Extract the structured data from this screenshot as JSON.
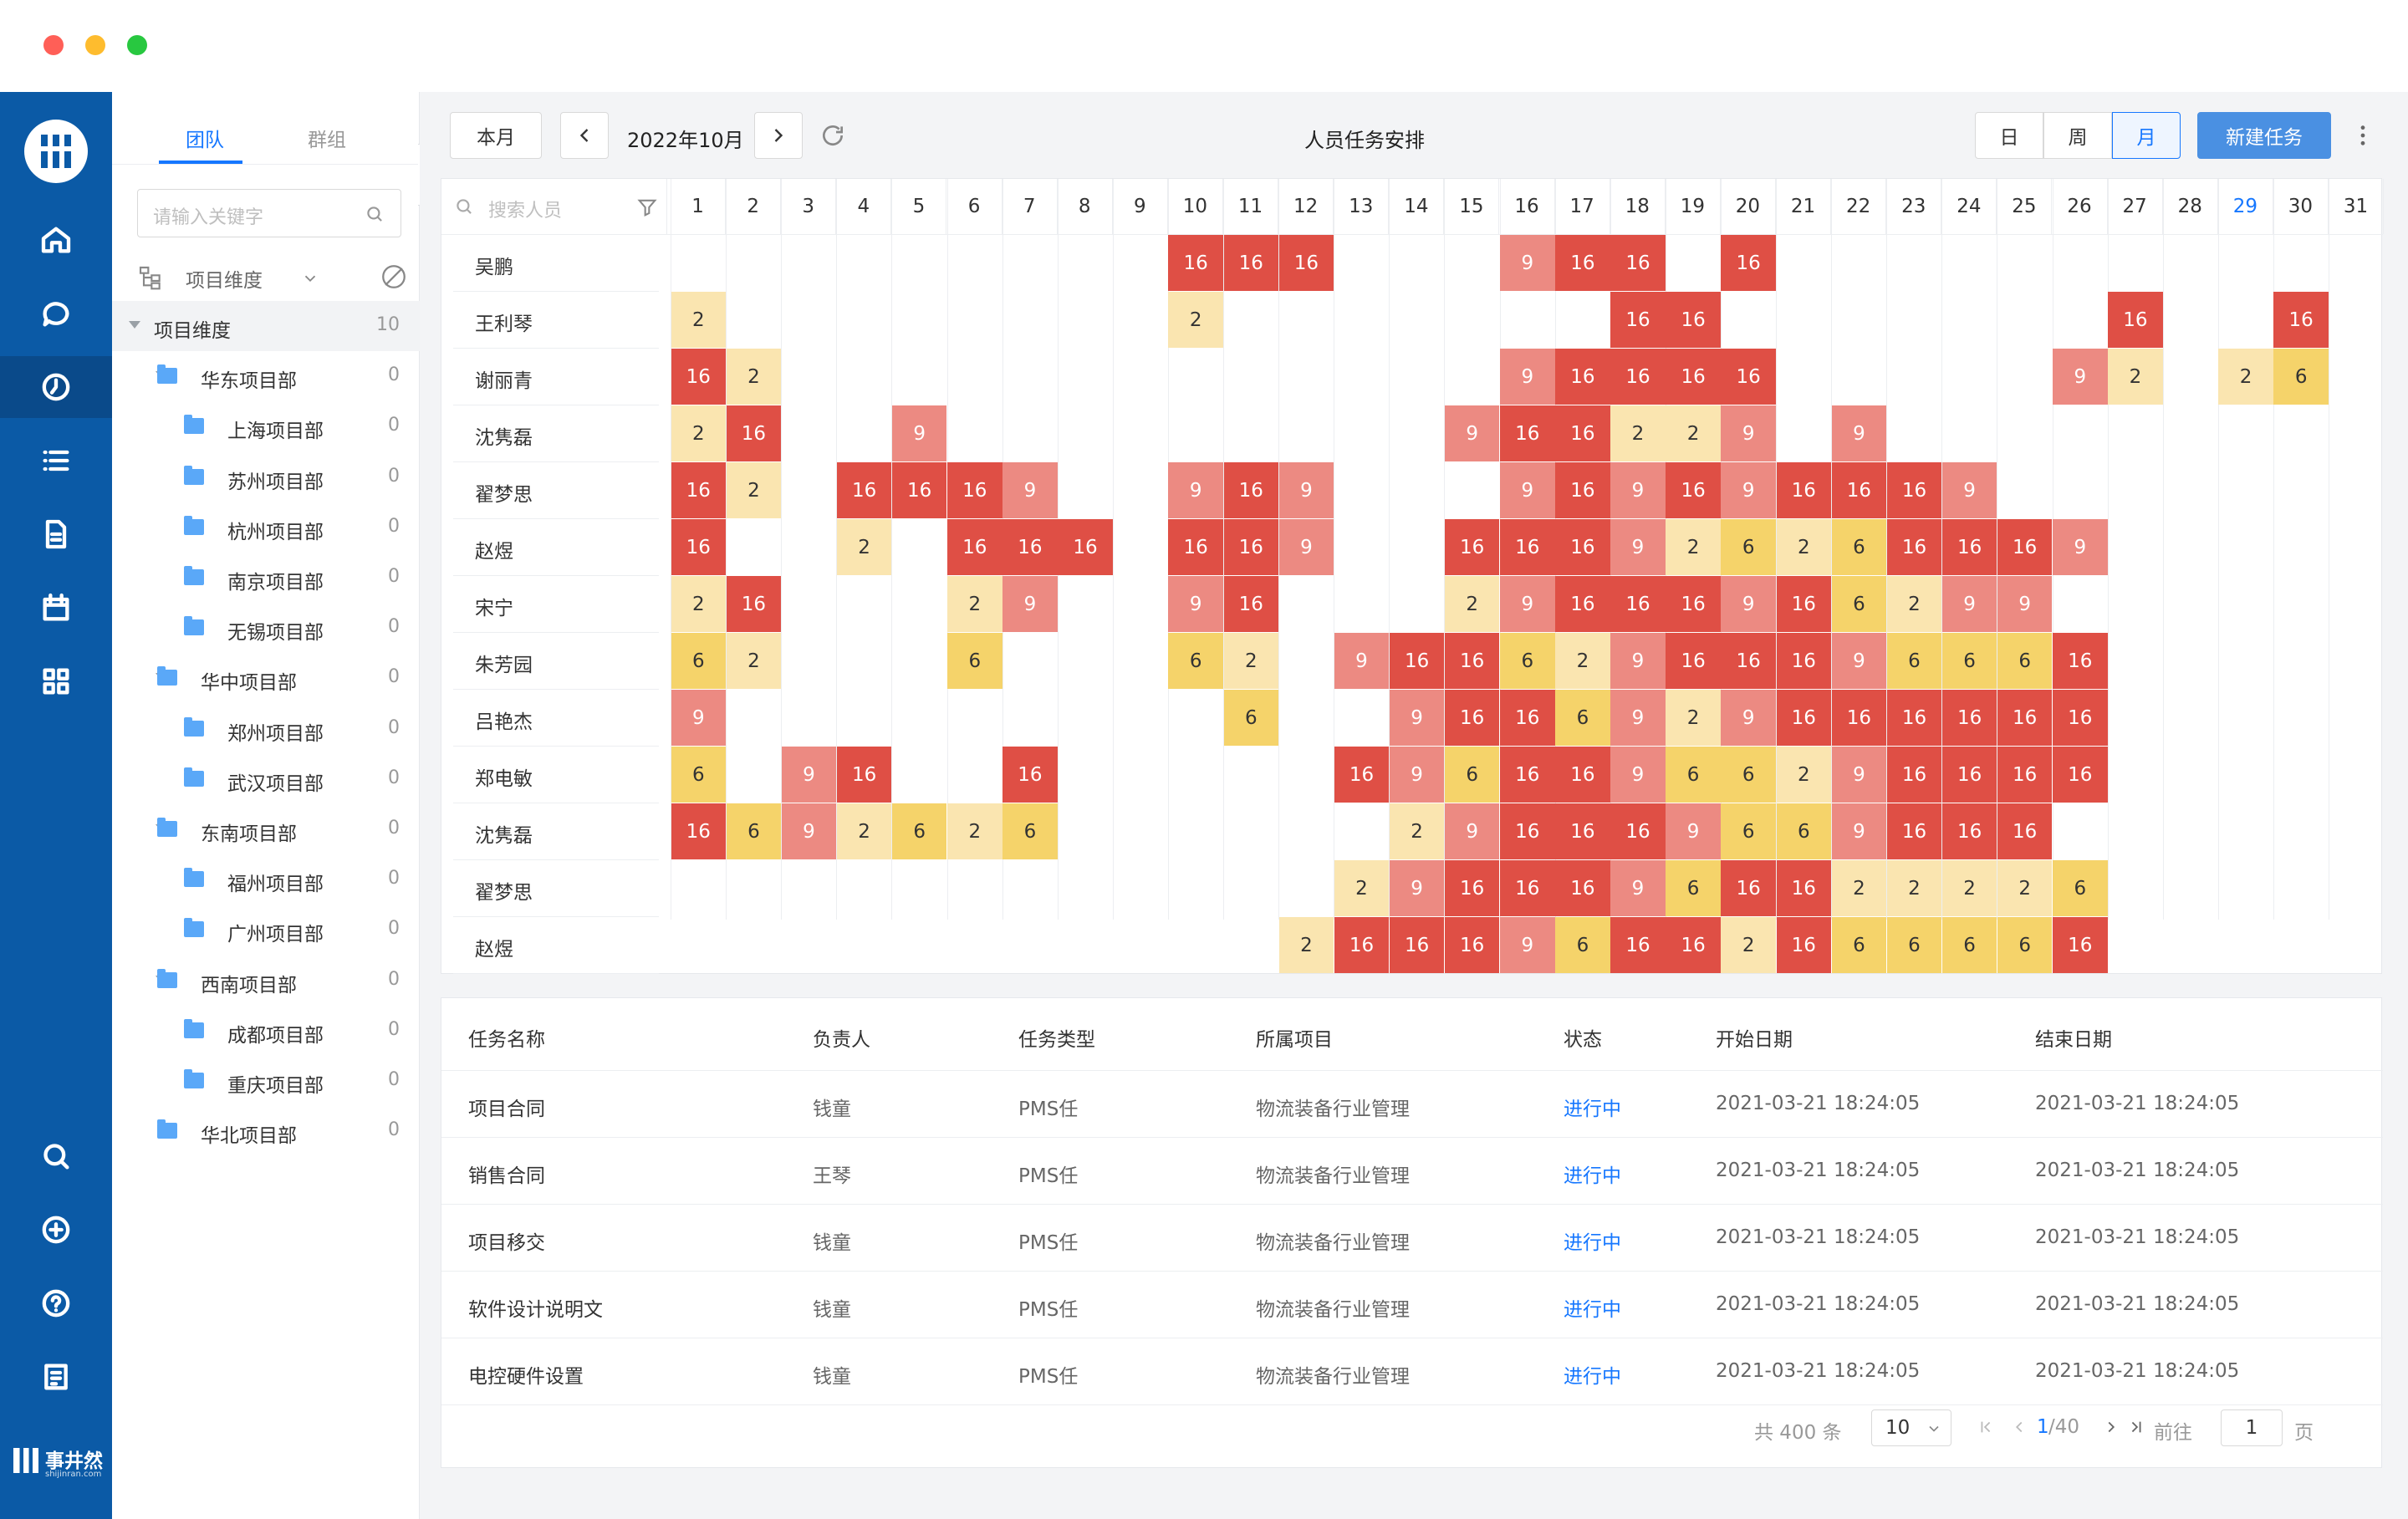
{
  "window": {
    "dots": [
      "#ff5f57",
      "#febc2e",
      "#28c840"
    ]
  },
  "tree": {
    "tabs": [
      "团队",
      "群组"
    ],
    "search_placeholder": "请输入关键字",
    "dimension_label": "项目维度",
    "nodes": [
      {
        "label": "项目维度",
        "count": "10",
        "level": 0,
        "expand": true,
        "selected": true
      },
      {
        "label": "华东项目部",
        "count": "0",
        "level": 1,
        "expand": true
      },
      {
        "label": "上海项目部",
        "count": "0",
        "level": 2
      },
      {
        "label": "苏州项目部",
        "count": "0",
        "level": 2
      },
      {
        "label": "杭州项目部",
        "count": "0",
        "level": 2
      },
      {
        "label": "南京项目部",
        "count": "0",
        "level": 2
      },
      {
        "label": "无锡项目部",
        "count": "0",
        "level": 2
      },
      {
        "label": "华中项目部",
        "count": "0",
        "level": 1,
        "expand": true
      },
      {
        "label": "郑州项目部",
        "count": "0",
        "level": 2
      },
      {
        "label": "武汉项目部",
        "count": "0",
        "level": 2
      },
      {
        "label": "东南项目部",
        "count": "0",
        "level": 1,
        "expand": true
      },
      {
        "label": "福州项目部",
        "count": "0",
        "level": 2
      },
      {
        "label": "广州项目部",
        "count": "0",
        "level": 2
      },
      {
        "label": "西南项目部",
        "count": "0",
        "level": 1,
        "expand": true
      },
      {
        "label": "成都项目部",
        "count": "0",
        "level": 2
      },
      {
        "label": "重庆项目部",
        "count": "0",
        "level": 2
      },
      {
        "label": "华北项目部",
        "count": "0",
        "level": 1,
        "expand": false
      }
    ]
  },
  "toolbar": {
    "this_month": "本月",
    "month": "2022年10月",
    "title": "人员任务安排",
    "views": [
      "日",
      "周",
      "月"
    ],
    "active_view": "月",
    "new_task": "新建任务"
  },
  "schedule": {
    "search_placeholder": "搜索人员",
    "days": [
      "1",
      "2",
      "3",
      "4",
      "5",
      "6",
      "7",
      "8",
      "9",
      "10",
      "11",
      "12",
      "13",
      "14",
      "15",
      "16",
      "17",
      "18",
      "19",
      "20",
      "21",
      "22",
      "23",
      "24",
      "25",
      "26",
      "27",
      "28",
      "29",
      "30",
      "31"
    ],
    "highlight_day": "29",
    "people": [
      "吴鹏",
      "王利琴",
      "谢丽青",
      "沈隽磊",
      "翟梦思",
      "赵煜",
      "宋宁",
      "朱芳园",
      "吕艳杰",
      "郑电敏",
      "沈隽磊",
      "翟梦思",
      "赵煜"
    ],
    "grid": [
      [
        "",
        "",
        "",
        "",
        "",
        "",
        "",
        "",
        "",
        "16",
        "16",
        "16",
        "",
        "",
        "",
        "9",
        "16",
        "16",
        "",
        "16",
        "",
        "",
        "",
        "",
        "",
        "",
        "",
        "",
        "",
        "",
        ""
      ],
      [
        "2",
        "",
        "",
        "",
        "",
        "",
        "",
        "",
        "",
        "2",
        "",
        "",
        "",
        "",
        "",
        "",
        "",
        "16",
        "16",
        "",
        "",
        "",
        "",
        "",
        "",
        "",
        "16",
        "",
        "",
        "16",
        ""
      ],
      [
        "16",
        "2",
        "",
        "",
        "",
        "",
        "",
        "",
        "",
        "",
        "",
        "",
        "",
        "",
        "",
        "9",
        "16",
        "16",
        "16",
        "16",
        "",
        "",
        "",
        "",
        "",
        "9",
        "2",
        "",
        "2",
        "6",
        ""
      ],
      [
        "2",
        "16",
        "",
        "",
        "9",
        "",
        "",
        "",
        "",
        "",
        "",
        "",
        "",
        "",
        "9",
        "16",
        "16",
        "2",
        "2",
        "9",
        "",
        "9",
        "",
        "",
        "",
        "",
        "",
        "",
        "",
        "",
        ""
      ],
      [
        "16",
        "2",
        "",
        "16",
        "16",
        "16",
        "9",
        "",
        "",
        "9",
        "16",
        "9",
        "",
        "",
        "",
        "9",
        "16",
        "9",
        "16",
        "9",
        "16",
        "16",
        "16",
        "9",
        "",
        "",
        "",
        "",
        "",
        "",
        ""
      ],
      [
        "16",
        "",
        "",
        "2",
        "",
        "16",
        "16",
        "16",
        "",
        "16",
        "16",
        "9",
        "",
        "",
        "16",
        "16",
        "16",
        "9",
        "2",
        "6",
        "2",
        "6",
        "16",
        "16",
        "16",
        "9",
        "",
        "",
        "",
        "",
        ""
      ],
      [
        "2",
        "16",
        "",
        "",
        "",
        "2",
        "9",
        "",
        "",
        "9",
        "16",
        "",
        "",
        "",
        "2",
        "9",
        "16",
        "16",
        "16",
        "9",
        "16",
        "6",
        "2",
        "9",
        "9",
        "",
        "",
        "",
        "",
        "",
        ""
      ],
      [
        "6",
        "2",
        "",
        "",
        "",
        "6",
        "",
        "",
        "",
        "6",
        "2",
        "",
        "9",
        "16",
        "16",
        "6",
        "2",
        "9",
        "16",
        "16",
        "16",
        "9",
        "6",
        "6",
        "6",
        "16",
        "",
        "",
        "",
        "",
        ""
      ],
      [
        "9",
        "",
        "",
        "",
        "",
        "",
        "",
        "",
        "",
        "",
        "6",
        "",
        "",
        "9",
        "16",
        "16",
        "6",
        "9",
        "2",
        "9",
        "16",
        "16",
        "16",
        "16",
        "16",
        "16",
        "",
        "",
        "",
        "",
        ""
      ],
      [
        "6",
        "",
        "9",
        "16",
        "",
        "",
        "16",
        "",
        "",
        "",
        "",
        "",
        "16",
        "9",
        "6",
        "16",
        "16",
        "9",
        "6",
        "6",
        "2",
        "9",
        "16",
        "16",
        "16",
        "16",
        "",
        "",
        "",
        "",
        ""
      ],
      [
        "16",
        "6",
        "9",
        "2",
        "6",
        "2",
        "6",
        "",
        "",
        "",
        "",
        "",
        "",
        "2",
        "9",
        "16",
        "16",
        "16",
        "9",
        "6",
        "6",
        "9",
        "16",
        "16",
        "16",
        "",
        "",
        "",
        "",
        "",
        ""
      ],
      [
        "",
        "",
        "",
        "",
        "",
        "",
        "",
        "",
        "",
        "",
        "",
        "",
        "2",
        "9",
        "16",
        "16",
        "16",
        "9",
        "6",
        "16",
        "16",
        "2",
        "2",
        "2",
        "2",
        "6",
        "",
        "",
        "",
        "",
        ""
      ],
      [
        "",
        "",
        "",
        "",
        "",
        "",
        "",
        "",
        "",
        "",
        "",
        "2",
        "16",
        "16",
        "16",
        "9",
        "6",
        "16",
        "16",
        "2",
        "16",
        "6",
        "6",
        "6",
        "6",
        "16",
        "",
        "",
        "",
        "",
        ""
      ]
    ],
    "colors": {
      "16": "#df4f45",
      "9": "#ec8a82",
      "6": "#f5d36a",
      "2": "#fae5b0"
    }
  },
  "tasks": {
    "headers": [
      "任务名称",
      "负责人",
      "任务类型",
      "所属项目",
      "状态",
      "开始日期",
      "结束日期"
    ],
    "rows": [
      [
        "项目合同",
        "钱童",
        "PMS任",
        "物流装备行业管理",
        "进行中",
        "2021-03-21 18:24:05",
        "2021-03-21 18:24:05"
      ],
      [
        "销售合同",
        "王琴",
        "PMS任",
        "物流装备行业管理",
        "进行中",
        "2021-03-21 18:24:05",
        "2021-03-21 18:24:05"
      ],
      [
        "项目移交",
        "钱童",
        "PMS任",
        "物流装备行业管理",
        "进行中",
        "2021-03-21 18:24:05",
        "2021-03-21 18:24:05"
      ],
      [
        "软件设计说明文",
        "钱童",
        "PMS任",
        "物流装备行业管理",
        "进行中",
        "2021-03-21 18:24:05",
        "2021-03-21 18:24:05"
      ],
      [
        "电控硬件设置",
        "钱童",
        "PMS任",
        "物流装备行业管理",
        "进行中",
        "2021-03-21 18:24:05",
        "2021-03-21 18:24:05"
      ]
    ],
    "status_color": "#1677ff"
  },
  "pager": {
    "total": "共 400 条",
    "page_size": "10",
    "current": "1",
    "pages": "/40",
    "goto": "前往",
    "goto_value": "1",
    "page_unit": "页"
  },
  "brand": {
    "name": "事井然",
    "domain": "shijinran.com"
  }
}
